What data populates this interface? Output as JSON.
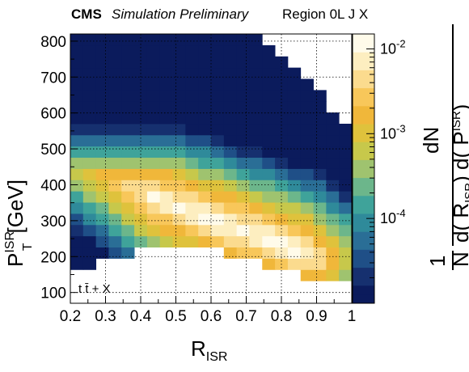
{
  "header": {
    "experiment": "CMS",
    "status": "Simulation Preliminary",
    "region": "Region 0L J X"
  },
  "chart_data": {
    "type": "heatmap",
    "x": {
      "label_main": "R",
      "label_sub": "ISR",
      "range": [
        0.2,
        1.0
      ],
      "ticks": [
        "0.2",
        "0.3",
        "0.4",
        "0.5",
        "0.6",
        "0.7",
        "0.8",
        "0.9",
        "1"
      ],
      "bins": 22
    },
    "y": {
      "label_main": "P",
      "label_sup": "ISR",
      "label_sub": "T",
      "label_unit": "[GeV]",
      "range": [
        70,
        820
      ],
      "ticks": [
        "100",
        "200",
        "300",
        "400",
        "500",
        "600",
        "700",
        "800"
      ],
      "bins": 24
    },
    "z": {
      "scale": "log",
      "range": [
        1e-05,
        0.015
      ],
      "ticks": [
        "10^-4",
        "10^-3",
        "10^-2"
      ],
      "label": "1/N dN / d(R_ISR) d(P_T^ISR)",
      "label_parts": {
        "one": "1",
        "n": "N",
        "dn": "dN",
        "d_open": "d( R",
        "isr1": "ISR",
        "mid": ") d( P",
        "isr2": "ISR",
        "t": "T",
        "close": ")"
      }
    },
    "process_label": "t t̄ + X",
    "grid": true,
    "distribution": {
      "description_of_shape": "log-density peaks near R_ISR≈0.75-0.85, P_T≈200-260 GeV",
      "ridge_start": [
        0.45,
        360
      ],
      "ridge_end": [
        0.85,
        215
      ],
      "peak_density": 0.012,
      "lower_edge": [
        [
          0.2,
          140
        ],
        [
          0.3,
          185
        ],
        [
          0.4,
          215
        ],
        [
          0.5,
          235
        ],
        [
          0.6,
          215
        ],
        [
          0.7,
          195
        ],
        [
          0.8,
          160
        ],
        [
          0.9,
          140
        ],
        [
          0.97,
          120
        ]
      ],
      "upper_edge": [
        [
          0.2,
          820
        ],
        [
          0.7,
          820
        ],
        [
          0.78,
          790
        ],
        [
          0.85,
          720
        ],
        [
          0.92,
          640
        ],
        [
          0.97,
          560
        ]
      ]
    },
    "palette": [
      "#0b1b5c",
      "#16306f",
      "#1f4f87",
      "#2a6e96",
      "#2f8a9a",
      "#3fa39a",
      "#6cb68b",
      "#9fc36f",
      "#c7c84b",
      "#dfc23c",
      "#f0b73a",
      "#f8c75a",
      "#fbdb8e",
      "#fdeec0",
      "#fffbea"
    ]
  }
}
